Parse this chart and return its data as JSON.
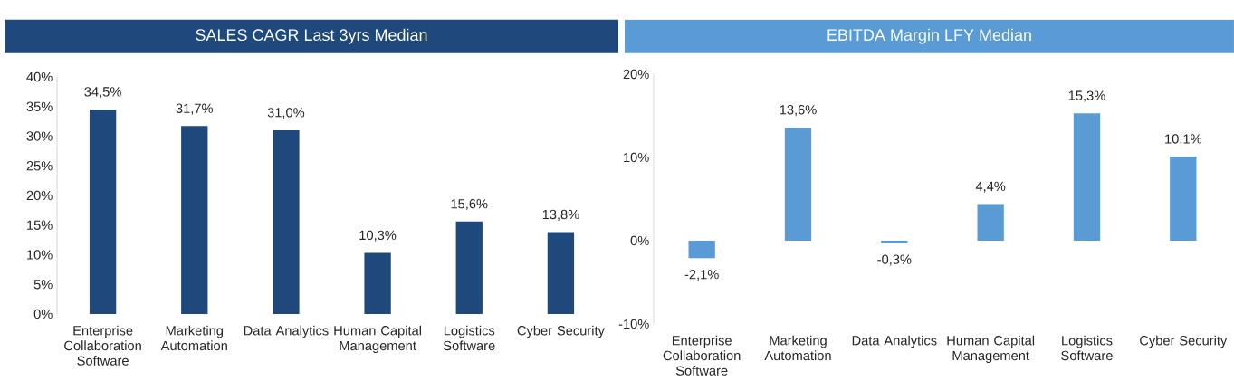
{
  "chart_data": [
    {
      "type": "bar",
      "title": "SALES CAGR Last 3yrs Median",
      "categories": [
        "Enterprise Collaboration Software",
        "Marketing Automation",
        "Data Analytics",
        "Human Capital Management",
        "Logistics Software",
        "Cyber Security"
      ],
      "values": [
        34.5,
        31.7,
        31.0,
        10.3,
        15.6,
        13.8
      ],
      "value_labels": [
        "34,5%",
        "31,7%",
        "31,0%",
        "10,3%",
        "15,6%",
        "13,8%"
      ],
      "color": "#1f497d",
      "ylim": [
        0,
        40
      ],
      "yticks": [
        {
          "value": 0,
          "label": "0%"
        },
        {
          "value": 5,
          "label": "5%"
        },
        {
          "value": 10,
          "label": "10%"
        },
        {
          "value": 15,
          "label": "15%"
        },
        {
          "value": 20,
          "label": "20%"
        },
        {
          "value": 25,
          "label": "25%"
        },
        {
          "value": 30,
          "label": "30%"
        },
        {
          "value": 35,
          "label": "35%"
        },
        {
          "value": 40,
          "label": "40%"
        }
      ]
    },
    {
      "type": "bar",
      "title": "EBITDA Margin LFY Median",
      "categories": [
        "Enterprise Collaboration Software",
        "Marketing Automation",
        "Data Analytics",
        "Human Capital Management",
        "Logistics Software",
        "Cyber Security"
      ],
      "values": [
        -2.1,
        13.6,
        -0.3,
        4.4,
        15.3,
        10.1
      ],
      "value_labels": [
        "-2,1%",
        "13,6%",
        "-0,3%",
        "4,4%",
        "15,3%",
        "10,1%"
      ],
      "color": "#5b9bd5",
      "ylim": [
        -10,
        20
      ],
      "yticks": [
        {
          "value": -10,
          "label": "-10%"
        },
        {
          "value": 0,
          "label": "0%"
        },
        {
          "value": 10,
          "label": "10%"
        },
        {
          "value": 20,
          "label": "20%"
        }
      ]
    }
  ]
}
